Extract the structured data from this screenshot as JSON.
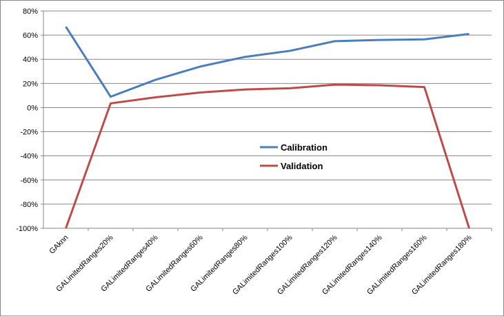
{
  "chart_data": {
    "type": "line",
    "title": "",
    "xlabel": "",
    "ylabel": "",
    "categories": [
      "GAknn",
      "GALimitedRanges20%",
      "GALimitedRanges40%",
      "GALimitedRanges60%",
      "GALimitedRanges80%",
      "GALimitedRanges100%",
      "GALimitedRanges120%",
      "GALimitedRanges140%",
      "GALimitedRanges160%",
      "GALimitedRanges180%"
    ],
    "ylim": [
      -100,
      80
    ],
    "y_ticks": [
      80,
      60,
      40,
      20,
      0,
      -20,
      -40,
      -60,
      -80,
      -100
    ],
    "y_tick_labels": [
      "80%",
      "60%",
      "40%",
      "20%",
      "0%",
      "-20%",
      "-40%",
      "-60%",
      "-80%",
      "-100%"
    ],
    "grid": true,
    "legend_position": "center-right",
    "series": [
      {
        "name": "Calibration",
        "color": "#4a7ebb",
        "values": [
          67,
          9,
          23,
          34,
          42,
          47,
          55,
          56,
          56.5,
          61
        ]
      },
      {
        "name": "Validation",
        "color": "#be4b48",
        "values": [
          -100,
          3.5,
          8.5,
          12.5,
          15,
          16,
          19,
          18.5,
          17,
          -100
        ]
      }
    ]
  }
}
